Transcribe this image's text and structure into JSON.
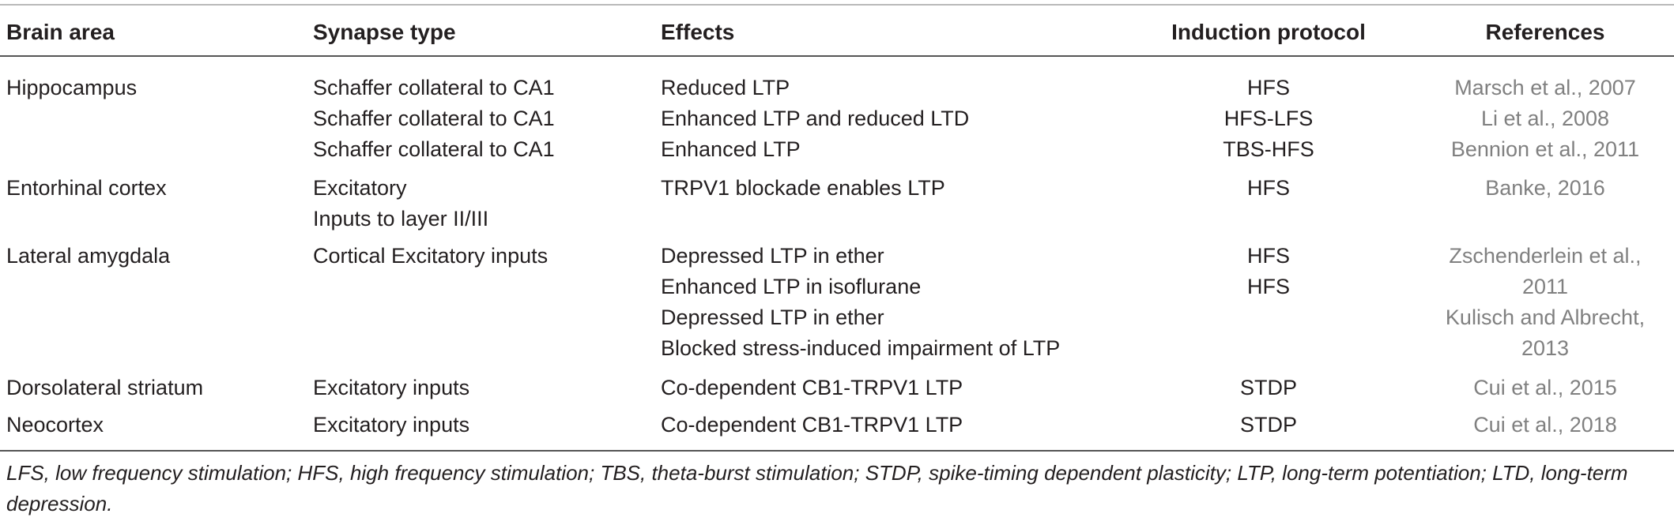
{
  "table": {
    "headers": {
      "brain_area": "Brain area",
      "synapse_type": "Synapse type",
      "effects": "Effects",
      "induction_protocol": "Induction protocol",
      "references": "References"
    },
    "rows": [
      {
        "brain_area": "Hippocampus",
        "synapse_type": [
          "Schaffer collateral to CA1",
          "Schaffer collateral to CA1",
          "Schaffer collateral to CA1"
        ],
        "effects": [
          "Reduced LTP",
          "Enhanced LTP and reduced LTD",
          "Enhanced LTP"
        ],
        "induction_protocol": [
          "HFS",
          "HFS-LFS",
          "TBS-HFS"
        ],
        "references": [
          "Marsch et al., 2007",
          "Li et al., 2008",
          "Bennion et al., 2011"
        ]
      },
      {
        "brain_area": "Entorhinal cortex",
        "synapse_type": [
          "Excitatory",
          "Inputs to layer II/III"
        ],
        "effects": [
          "TRPV1 blockade enables LTP"
        ],
        "induction_protocol": [
          "HFS"
        ],
        "references": [
          "Banke, 2016"
        ]
      },
      {
        "brain_area": "Lateral amygdala",
        "synapse_type": [
          "Cortical Excitatory inputs"
        ],
        "effects": [
          "Depressed LTP in ether",
          "Enhanced LTP in isoflurane",
          "Depressed LTP in ether",
          "Blocked stress-induced impairment of LTP"
        ],
        "induction_protocol": [
          "HFS",
          "HFS"
        ],
        "references": [
          "Zschenderlein et al.,",
          "2011",
          "Kulisch and Albrecht,",
          "2013"
        ]
      },
      {
        "brain_area": "Dorsolateral striatum",
        "synapse_type": [
          "Excitatory inputs"
        ],
        "effects": [
          "Co-dependent CB1-TRPV1 LTP"
        ],
        "induction_protocol": [
          "STDP"
        ],
        "references": [
          "Cui et al., 2015"
        ]
      },
      {
        "brain_area": "Neocortex",
        "synapse_type": [
          "Excitatory inputs"
        ],
        "effects": [
          "Co-dependent CB1-TRPV1 LTP"
        ],
        "induction_protocol": [
          "STDP"
        ],
        "references": [
          "Cui et al., 2018"
        ]
      }
    ],
    "footnote": "LFS, low frequency stimulation; HFS, high frequency stimulation; TBS, theta-burst stimulation; STDP, spike-timing dependent plasticity; LTP, long-term potentiation; LTD, long-term depression."
  }
}
